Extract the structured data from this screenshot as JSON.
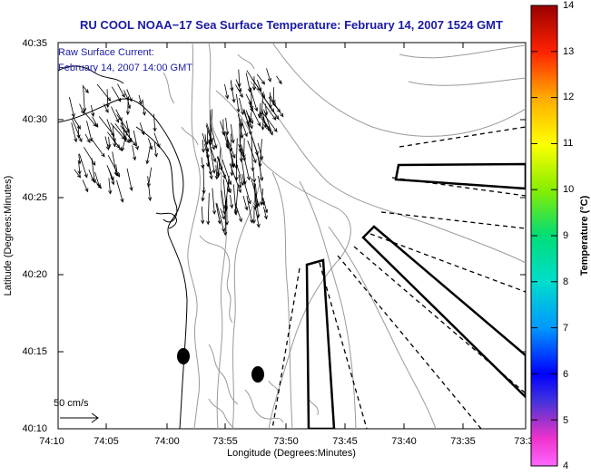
{
  "title": "RU COOL  NOAA−17 Sea Surface Temperature:  February 14, 2007 1524 GMT",
  "current_label": {
    "line1": "Raw Surface Current:",
    "line2": "February 14, 2007 14:00 GMT"
  },
  "scale_label": "50 cm/s",
  "axes": {
    "xlabel": "Longitude (Degrees:Minutes)",
    "ylabel": "Latitude (Degrees:Minutes)",
    "x_ticks": [
      "74:10",
      "74:05",
      "74:00",
      "73:55",
      "73:50",
      "73:45",
      "73:40",
      "73:35",
      "73:3"
    ],
    "y_ticks": [
      "40:35",
      "40:30",
      "40:25",
      "40:20",
      "40:15",
      "40:10"
    ]
  },
  "colorbar": {
    "label": "Temperature (°C)",
    "min": 4,
    "max": 14,
    "ticks": [
      "14",
      "13",
      "12",
      "11",
      "10",
      "9",
      "8",
      "7",
      "6",
      "5",
      "4"
    ]
  },
  "colors": {
    "title": "#1a1aa6",
    "contour": "#9a9a9a",
    "coast": "#000000"
  }
}
